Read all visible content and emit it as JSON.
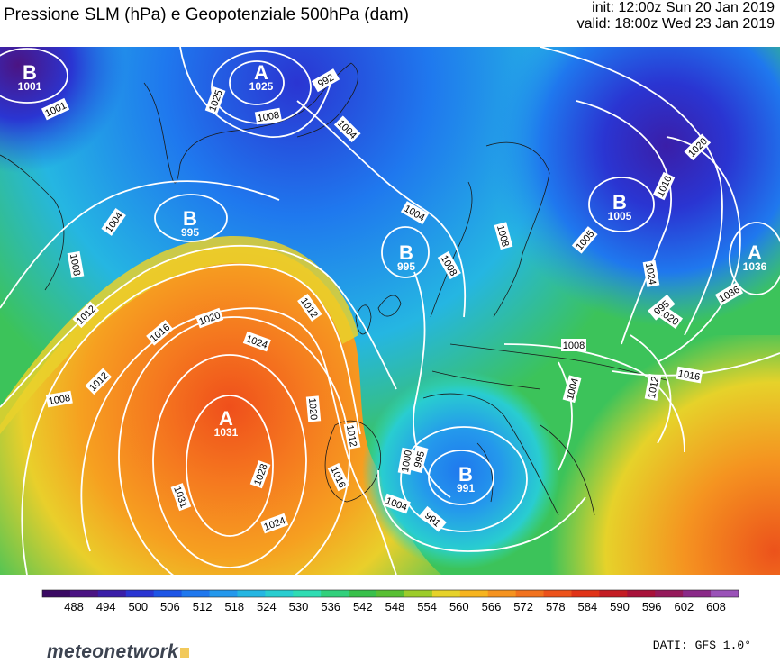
{
  "header": {
    "title": "Pressione SLM (hPa) e Geopotenziale 500hPa (dam)",
    "init": "init: 12:00z Sun 20 Jan 2019",
    "valid": "valid: 18:00z Wed 23 Jan 2019"
  },
  "legend": {
    "ticks": [
      "488",
      "494",
      "500",
      "506",
      "512",
      "518",
      "524",
      "530",
      "536",
      "542",
      "548",
      "554",
      "560",
      "566",
      "572",
      "578",
      "584",
      "590",
      "596",
      "602",
      "608"
    ],
    "colors": [
      "#3a0a63",
      "#4b1483",
      "#3a1ea8",
      "#2a35d2",
      "#1d55e6",
      "#1f78ee",
      "#2498ec",
      "#25b6e2",
      "#29cdd0",
      "#2fdcb3",
      "#32d07c",
      "#39c04b",
      "#58bf33",
      "#9ccc2a",
      "#e6d22a",
      "#f6b41f",
      "#f59320",
      "#f1721e",
      "#ec521b",
      "#e03317",
      "#c41d24",
      "#a8123a",
      "#951a5b",
      "#8a2a88",
      "#9a52b8"
    ]
  },
  "isobars": [
    "1001",
    "1025",
    "992",
    "1008",
    "1004",
    "1020",
    "1016",
    "1004",
    "995",
    "1004",
    "1008",
    "1008",
    "995",
    "1008",
    "1012",
    "1012",
    "1016",
    "1020",
    "1024",
    "1012",
    "1008",
    "1036",
    "1024",
    "1020",
    "1016",
    "1008",
    "1012",
    "1004",
    "1020",
    "1012",
    "1016",
    "1000",
    "1004",
    "1024",
    "1028",
    "991",
    "1005",
    "1031"
  ],
  "centers": [
    {
      "letter": "B",
      "value": "1001"
    },
    {
      "letter": "A",
      "value": "1025"
    },
    {
      "letter": "B",
      "value": "995"
    },
    {
      "letter": "B",
      "value": "995"
    },
    {
      "letter": "B",
      "value": "1005"
    },
    {
      "letter": "A",
      "value": "1036"
    },
    {
      "letter": "A",
      "value": "1031"
    },
    {
      "letter": "B",
      "value": "991"
    }
  ],
  "footer": {
    "logo_brand": "meteonetwork",
    "data_source": "DATI: GFS 1.0°"
  }
}
